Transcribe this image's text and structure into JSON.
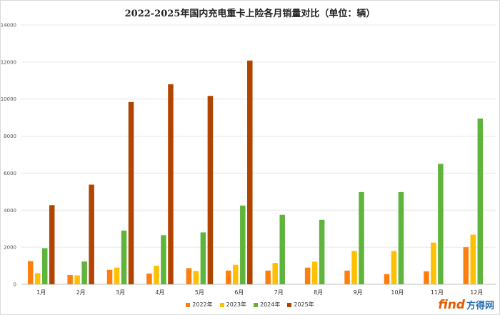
{
  "chart_data": {
    "type": "bar",
    "title": "2022-2025年国内充电重卡上险各月销量对比（单位：辆）",
    "xlabel": "",
    "ylabel": "",
    "categories": [
      "1月",
      "2月",
      "3月",
      "4月",
      "5月",
      "6月",
      "7月",
      "8月",
      "9月",
      "10月",
      "11月",
      "12月"
    ],
    "ylim": [
      0,
      14000
    ],
    "yticks": [
      0,
      2000,
      4000,
      6000,
      8000,
      10000,
      12000,
      14000
    ],
    "grid": true,
    "legend_position": "bottom",
    "series": [
      {
        "name": "2022年",
        "color": "#ff7f0e",
        "values": [
          1250,
          500,
          780,
          580,
          870,
          740,
          740,
          900,
          740,
          550,
          700,
          2000
        ]
      },
      {
        "name": "2023年",
        "color": "#ffc000",
        "values": [
          600,
          480,
          900,
          1000,
          720,
          1050,
          1150,
          1220,
          1800,
          1800,
          2250,
          2680
        ]
      },
      {
        "name": "2024年",
        "color": "#5fb43c",
        "values": [
          1950,
          1230,
          2900,
          2650,
          2800,
          4250,
          3750,
          3480,
          4980,
          4980,
          6500,
          8950
        ]
      },
      {
        "name": "2025年",
        "color": "#b04400",
        "values": [
          4270,
          5380,
          9840,
          10800,
          10170,
          12080,
          null,
          null,
          null,
          null,
          null,
          null
        ]
      }
    ]
  },
  "watermark": {
    "logo": "find",
    "text": "方得网"
  }
}
